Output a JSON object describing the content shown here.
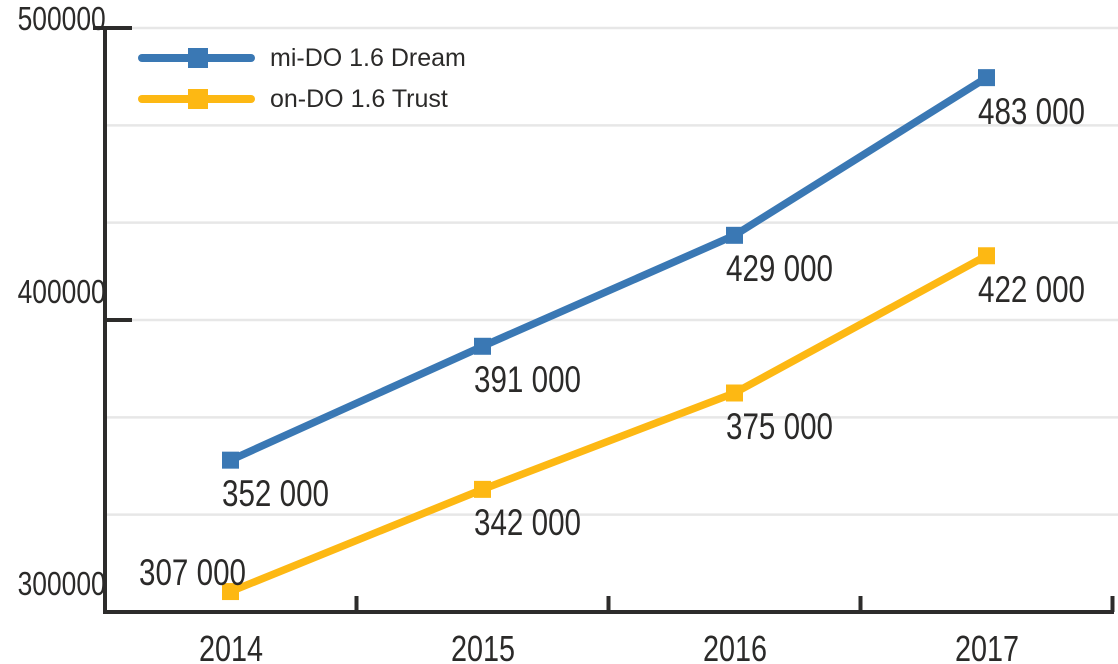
{
  "chart_data": {
    "type": "line",
    "categories": [
      "2014",
      "2015",
      "2016",
      "2017"
    ],
    "series": [
      {
        "name": "mi-DO 1.6 Dream",
        "color": "#3a78b4",
        "values": [
          352000,
          391000,
          429000,
          483000
        ],
        "point_labels": [
          "352 000",
          "391 000",
          "429 000",
          "483 000"
        ],
        "label_positions": [
          "below",
          "below",
          "below",
          "below"
        ]
      },
      {
        "name": "on-DO 1.6 Trust",
        "color": "#fdb813",
        "values": [
          307000,
          342000,
          375000,
          422000
        ],
        "point_labels": [
          "307 000",
          "342 000",
          "375 000",
          "422 000"
        ],
        "label_positions": [
          "above-left",
          "below",
          "below",
          "below"
        ]
      }
    ],
    "ylim": [
      300000,
      500000
    ],
    "y_ticks": [
      {
        "value": 500000,
        "label": "500000"
      },
      {
        "value": 400000,
        "label": "400000"
      },
      {
        "value": 300000,
        "label": "300000"
      }
    ],
    "minor_gridlines_per_interval": 2,
    "grid": true,
    "legend_position": "top-left",
    "marker": "square"
  },
  "colors": {
    "background": "#ffffff",
    "axis": "#2d2c2b",
    "gridline": "#e7e7e7",
    "text": "#2b2a29"
  }
}
